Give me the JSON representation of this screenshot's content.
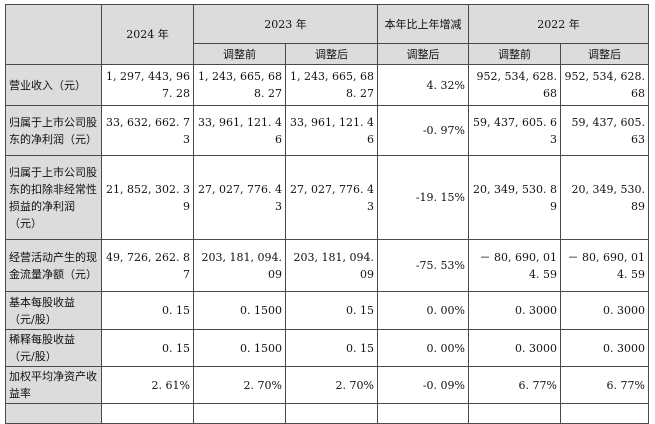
{
  "header": {
    "y2024": "2024 年",
    "y2023": "2023 年",
    "change": "本年比上年增减",
    "y2022": "2022 年",
    "before": "调整前",
    "after": "调整后"
  },
  "rows": [
    {
      "label": "营业收入（元）",
      "v2024": "1, 297, 443, 967. 28",
      "v2023_before": "1, 243, 665, 688. 27",
      "v2023_after": "1, 243, 665, 688. 27",
      "change": "4. 32%",
      "v2022_before": "952, 534, 628. 68",
      "v2022_after": "952, 534, 628. 68"
    },
    {
      "label": "归属于上市公司股东的净利润（元）",
      "v2024": "33, 632, 662. 73",
      "v2023_before": "33, 961, 121. 46",
      "v2023_after": "33, 961, 121. 46",
      "change": "-0. 97%",
      "v2022_before": "59, 437, 605. 63",
      "v2022_after": "59, 437, 605. 63"
    },
    {
      "label": "归属于上市公司股东的扣除非经常性损益的净利润（元）",
      "v2024": "21, 852, 302. 39",
      "v2023_before": "27, 027, 776. 43",
      "v2023_after": "27, 027, 776. 43",
      "change": "-19. 15%",
      "v2022_before": "20, 349, 530. 89",
      "v2022_after": "20, 349, 530. 89"
    },
    {
      "label": "经营活动产生的现金流量净额（元）",
      "v2024": "49, 726, 262. 87",
      "v2023_before": "203, 181, 094. 09",
      "v2023_after": "203, 181, 094. 09",
      "change": "-75. 53%",
      "v2022_before": "－ 80, 690, 014. 59",
      "v2022_after": "－ 80, 690, 014. 59"
    },
    {
      "label": "基本每股收益（元/股）",
      "v2024": "0. 15",
      "v2023_before": "0. 1500",
      "v2023_after": "0. 15",
      "change": "0. 00%",
      "v2022_before": "0. 3000",
      "v2022_after": "0. 3000"
    },
    {
      "label": "稀释每股收益（元/股）",
      "v2024": "0. 15",
      "v2023_before": "0. 1500",
      "v2023_after": "0. 15",
      "change": "0. 00%",
      "v2022_before": "0. 3000",
      "v2022_after": "0. 3000"
    },
    {
      "label": "加权平均净资产收益率",
      "v2024": "2. 61%",
      "v2023_before": "2. 70%",
      "v2023_after": "2. 70%",
      "change": "-0. 09%",
      "v2022_before": "6. 77%",
      "v2022_after": "6. 77%"
    },
    {
      "label": "",
      "v2024": "",
      "v2023_before": "",
      "v2023_after": "",
      "change": "",
      "v2022_before": "",
      "v2022_after": ""
    }
  ]
}
